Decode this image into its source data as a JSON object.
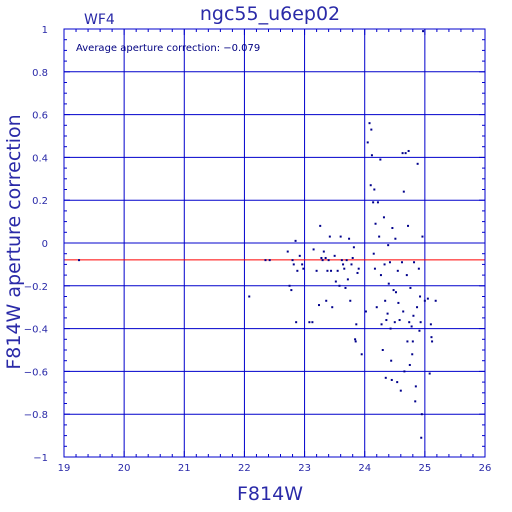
{
  "chart_data": {
    "type": "scatter",
    "title": "ngc55_u6ep02",
    "chip_label": "WF4",
    "annotation": "Average aperture correction: −0.079",
    "xlabel": "F814W",
    "ylabel": "F814W aperture correction",
    "xlim": [
      19,
      26
    ],
    "ylim": [
      -1,
      1
    ],
    "x_ticks": [
      19,
      20,
      21,
      22,
      23,
      24,
      25,
      26
    ],
    "y_ticks": [
      -1,
      -0.8,
      -0.6,
      -0.4,
      -0.2,
      0,
      0.2,
      0.4,
      0.6,
      0.8,
      1
    ],
    "y_tick_labels": [
      "−1",
      "−0.8",
      "−0.6",
      "−0.4",
      "−0.2",
      "0",
      "0.2",
      "0.4",
      "0.6",
      "0.8",
      "1"
    ],
    "grid": true,
    "reference_line": {
      "y": -0.079,
      "color": "#ff0000"
    },
    "colors": {
      "axis": "#0000cc",
      "points": "#00008b",
      "text": "#2a2aa8"
    },
    "points": [
      [
        19.25,
        -0.08
      ],
      [
        22.08,
        -0.25
      ],
      [
        22.35,
        -0.08
      ],
      [
        22.42,
        -0.08
      ],
      [
        22.72,
        -0.04
      ],
      [
        22.75,
        -0.2
      ],
      [
        22.78,
        -0.22
      ],
      [
        22.8,
        -0.08
      ],
      [
        22.82,
        -0.1
      ],
      [
        22.85,
        0.01
      ],
      [
        22.86,
        -0.37
      ],
      [
        22.88,
        -0.13
      ],
      [
        22.92,
        -0.06
      ],
      [
        22.96,
        -0.1
      ],
      [
        22.98,
        -0.12
      ],
      [
        23.08,
        -0.37
      ],
      [
        23.13,
        -0.37
      ],
      [
        23.15,
        -0.03
      ],
      [
        23.2,
        -0.13
      ],
      [
        23.24,
        -0.29
      ],
      [
        23.26,
        0.08
      ],
      [
        23.28,
        -0.07
      ],
      [
        23.3,
        -0.08
      ],
      [
        23.32,
        -0.04
      ],
      [
        23.35,
        -0.07
      ],
      [
        23.36,
        -0.27
      ],
      [
        23.38,
        -0.13
      ],
      [
        23.4,
        -0.08
      ],
      [
        23.42,
        0.03
      ],
      [
        23.44,
        -0.13
      ],
      [
        23.46,
        -0.3
      ],
      [
        23.5,
        -0.06
      ],
      [
        23.52,
        -0.18
      ],
      [
        23.55,
        -0.13
      ],
      [
        23.58,
        -0.2
      ],
      [
        23.6,
        0.03
      ],
      [
        23.62,
        -0.08
      ],
      [
        23.64,
        -0.1
      ],
      [
        23.66,
        -0.12
      ],
      [
        23.68,
        -0.21
      ],
      [
        23.7,
        -0.08
      ],
      [
        23.72,
        -0.17
      ],
      [
        23.74,
        0.02
      ],
      [
        23.76,
        -0.27
      ],
      [
        23.78,
        -0.1
      ],
      [
        23.8,
        -0.07
      ],
      [
        23.82,
        -0.02
      ],
      [
        23.84,
        -0.45
      ],
      [
        23.85,
        -0.46
      ],
      [
        23.86,
        -0.38
      ],
      [
        23.88,
        -0.14
      ],
      [
        23.9,
        -0.12
      ],
      [
        23.95,
        -0.52
      ],
      [
        24.02,
        -0.32
      ],
      [
        24.05,
        0.47
      ],
      [
        24.08,
        0.56
      ],
      [
        24.1,
        0.27
      ],
      [
        24.11,
        0.53
      ],
      [
        24.12,
        0.41
      ],
      [
        24.14,
        0.19
      ],
      [
        24.15,
        -0.05
      ],
      [
        24.16,
        0.25
      ],
      [
        24.17,
        -0.12
      ],
      [
        24.18,
        0.09
      ],
      [
        24.2,
        -0.3
      ],
      [
        24.22,
        0.19
      ],
      [
        24.24,
        0.03
      ],
      [
        24.26,
        0.39
      ],
      [
        24.27,
        -0.15
      ],
      [
        24.28,
        -0.38
      ],
      [
        24.3,
        -0.5
      ],
      [
        24.32,
        0.12
      ],
      [
        24.33,
        -0.1
      ],
      [
        24.34,
        -0.27
      ],
      [
        24.35,
        -0.63
      ],
      [
        24.36,
        -0.36
      ],
      [
        24.38,
        -0.33
      ],
      [
        24.39,
        -0.01
      ],
      [
        24.4,
        -0.19
      ],
      [
        24.42,
        -0.09
      ],
      [
        24.43,
        -0.4
      ],
      [
        24.44,
        -0.55
      ],
      [
        24.45,
        -0.64
      ],
      [
        24.46,
        0.07
      ],
      [
        24.48,
        -0.22
      ],
      [
        24.5,
        -0.37
      ],
      [
        24.51,
        0.02
      ],
      [
        24.52,
        -0.23
      ],
      [
        24.54,
        -0.65
      ],
      [
        24.55,
        -0.13
      ],
      [
        24.56,
        -0.28
      ],
      [
        24.58,
        -0.36
      ],
      [
        24.6,
        -0.69
      ],
      [
        24.62,
        -0.09
      ],
      [
        24.63,
        0.42
      ],
      [
        24.64,
        -0.32
      ],
      [
        24.65,
        0.24
      ],
      [
        24.66,
        -0.6
      ],
      [
        24.68,
        0.42
      ],
      [
        24.7,
        -0.15
      ],
      [
        24.71,
        -0.46
      ],
      [
        24.72,
        0.08
      ],
      [
        24.73,
        0.43
      ],
      [
        24.74,
        -0.37
      ],
      [
        24.75,
        -0.57
      ],
      [
        24.76,
        -0.21
      ],
      [
        24.78,
        -0.39
      ],
      [
        24.79,
        -0.52
      ],
      [
        24.8,
        -0.46
      ],
      [
        24.81,
        -0.34
      ],
      [
        24.82,
        -0.09
      ],
      [
        24.84,
        -0.74
      ],
      [
        24.85,
        -0.67
      ],
      [
        24.87,
        -0.3
      ],
      [
        24.88,
        0.37
      ],
      [
        24.9,
        -0.12
      ],
      [
        24.91,
        -0.41
      ],
      [
        24.92,
        -0.25
      ],
      [
        24.93,
        -0.37
      ],
      [
        24.94,
        -0.91
      ],
      [
        24.95,
        -0.8
      ],
      [
        24.96,
        0.03
      ],
      [
        24.97,
        0.99
      ],
      [
        25.0,
        -0.27
      ],
      [
        25.05,
        -0.26
      ],
      [
        25.08,
        -0.61
      ],
      [
        25.1,
        -0.38
      ],
      [
        25.11,
        -0.44
      ],
      [
        25.12,
        -0.46
      ],
      [
        25.18,
        -0.27
      ]
    ]
  }
}
